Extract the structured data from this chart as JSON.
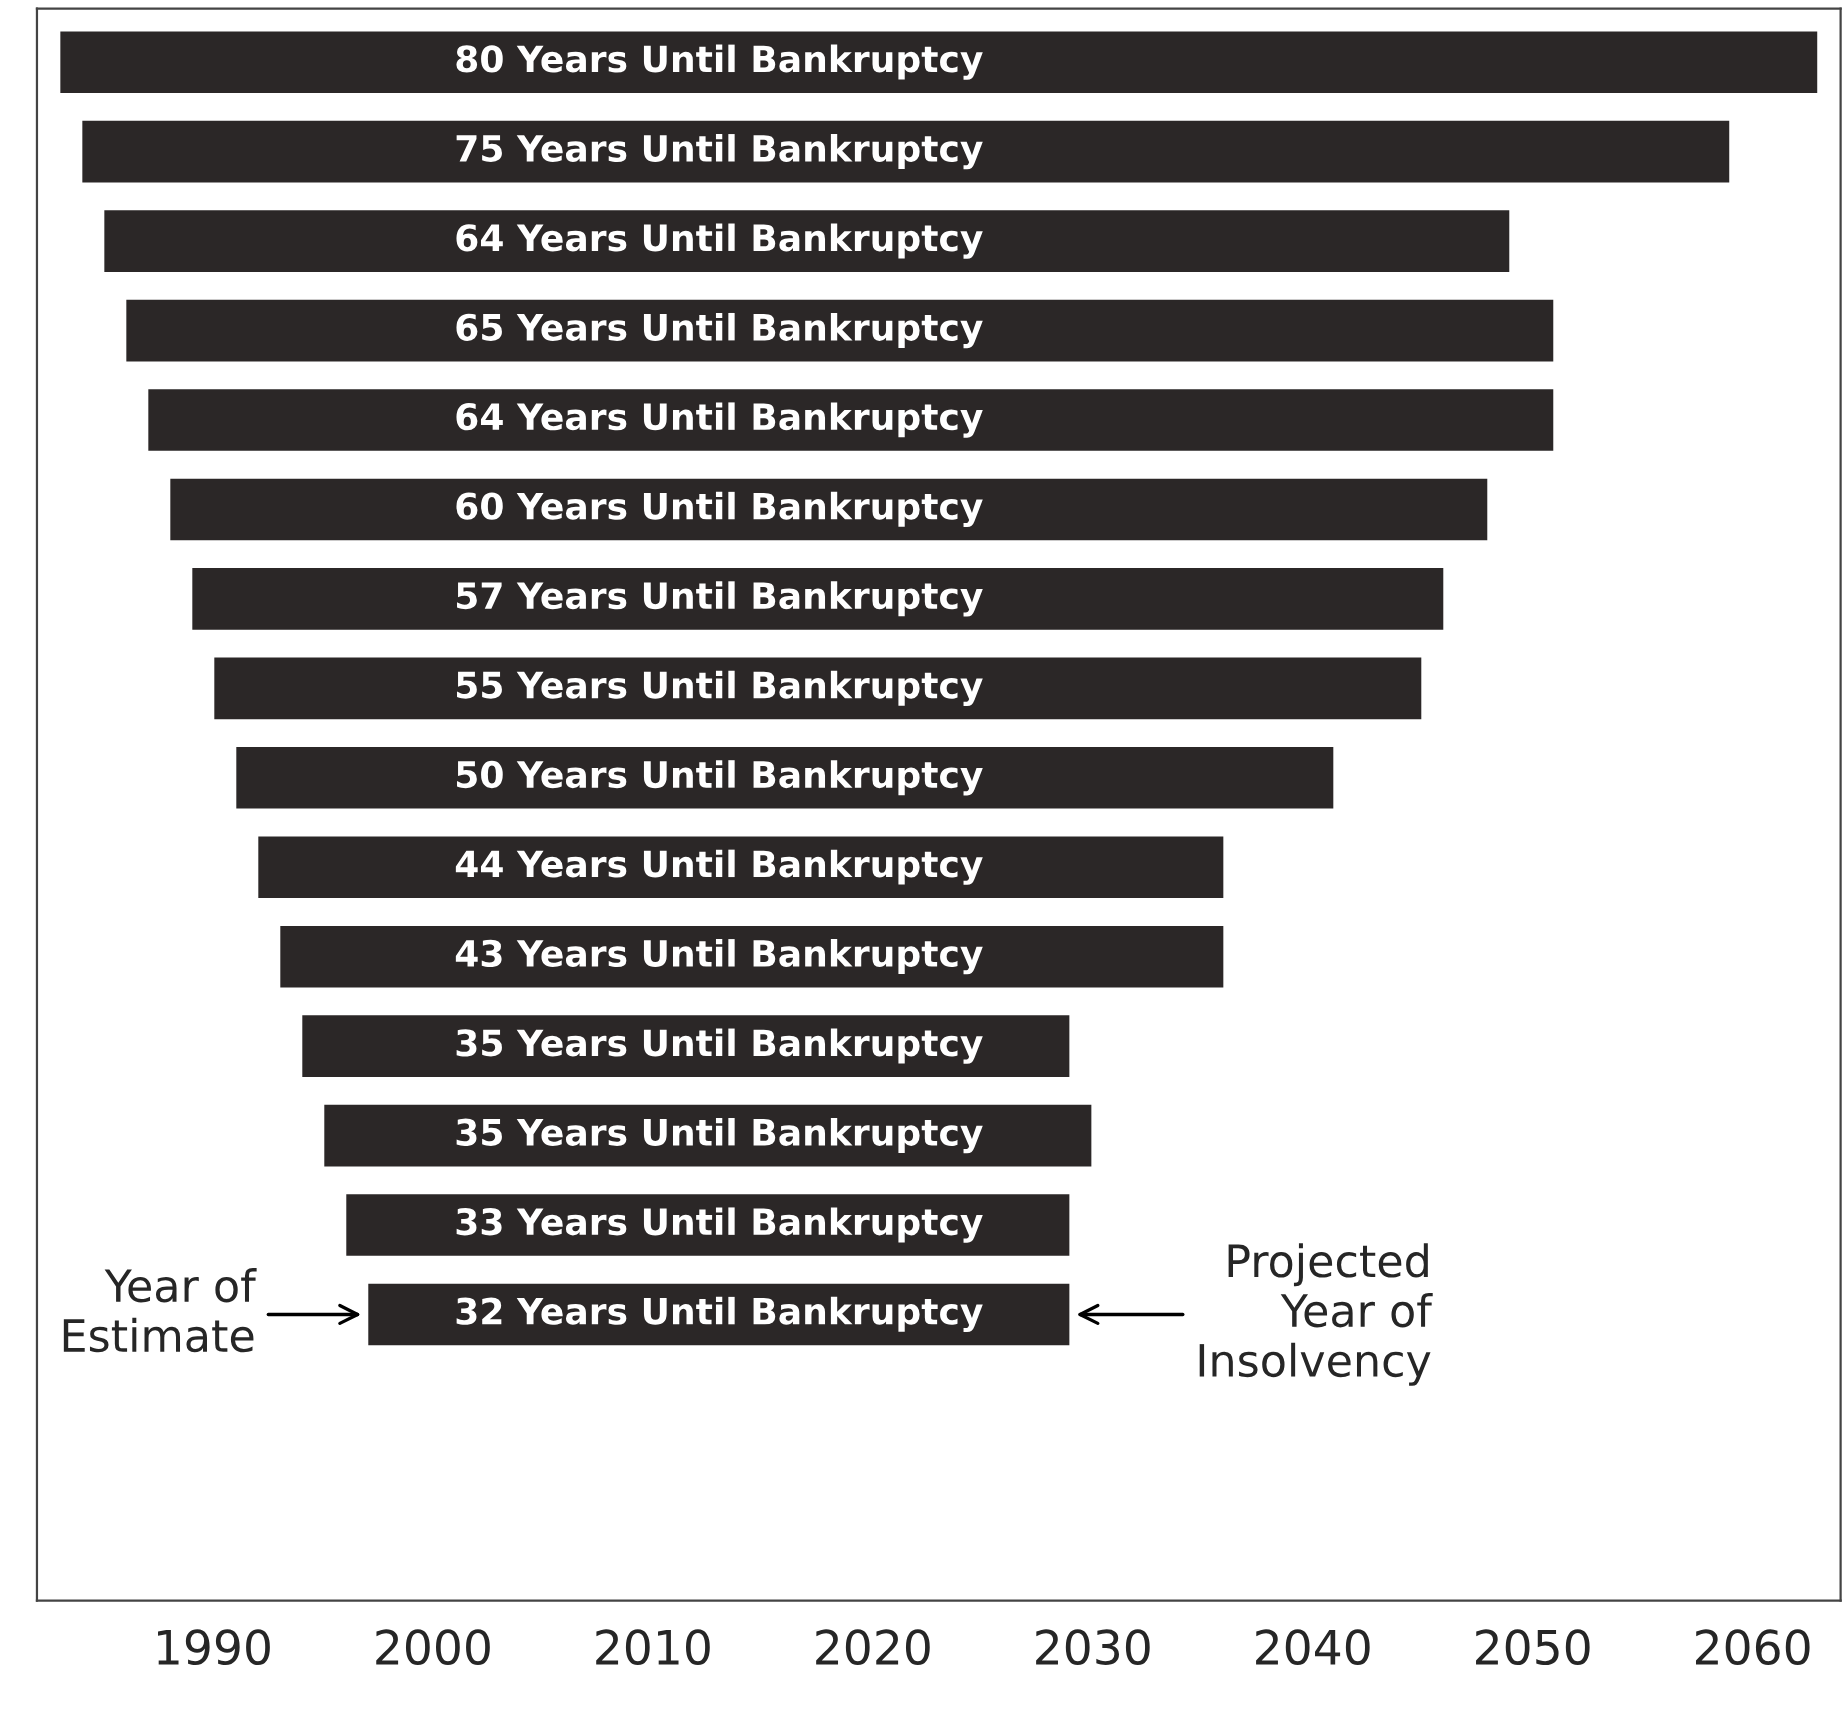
{
  "chart_data": {
    "type": "bar",
    "orientation": "horizontal",
    "categories": [
      null,
      null,
      null,
      null,
      null,
      null,
      null,
      null,
      null,
      null,
      null,
      null,
      null,
      null,
      null
    ],
    "base": [
      1983,
      1984,
      1985,
      1986,
      1987,
      1988,
      1989,
      1990,
      1991,
      1992,
      1993,
      1994,
      1995,
      1996,
      1997
    ],
    "values": [
      80,
      75,
      64,
      65,
      64,
      60,
      57,
      55,
      50,
      44,
      43,
      35,
      35,
      33,
      32
    ],
    "value_labels": [
      "80 Years Until Bankruptcy",
      "75 Years Until Bankruptcy",
      "64 Years Until Bankruptcy",
      "65 Years Until Bankruptcy",
      "64 Years Until Bankruptcy",
      "60 Years Until Bankruptcy",
      "57 Years Until Bankruptcy",
      "55 Years Until Bankruptcy",
      "50 Years Until Bankruptcy",
      "44 Years Until Bankruptcy",
      "43 Years Until Bankruptcy",
      "35 Years Until Bankruptcy",
      "35 Years Until Bankruptcy",
      "33 Years Until Bankruptcy",
      "32 Years Until Bankruptcy"
    ],
    "color": "#2b2727",
    "xlim": [
      1982,
      2064
    ],
    "xticks": [
      1990,
      2000,
      2010,
      2020,
      2030,
      2040,
      2050,
      2060
    ],
    "annotations": [
      {
        "text": "Year of\nEstimate",
        "x": 1997
      },
      {
        "text": "Projected\nYear of\nInsolvency",
        "x": 2029
      }
    ],
    "grid": false,
    "legend": false
  }
}
